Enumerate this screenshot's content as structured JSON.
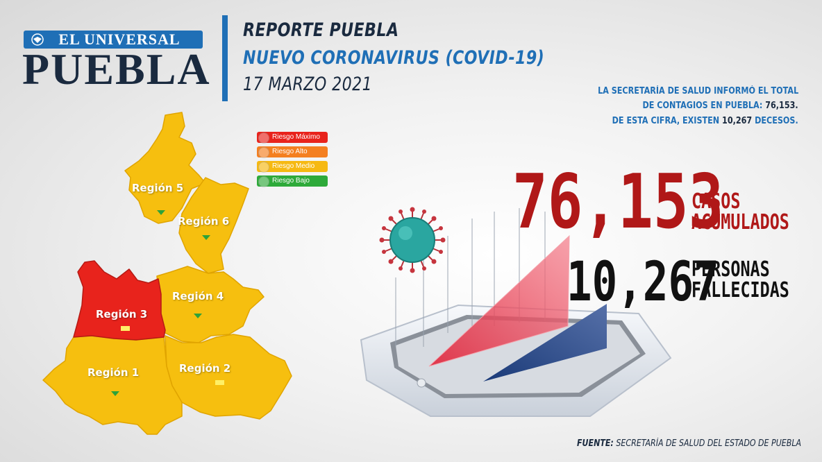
{
  "logo": {
    "top": "EL UNIVERSAL",
    "bottom": "PUEBLA"
  },
  "header": {
    "line1": "REPORTE PUEBLA",
    "line2": "NUEVO CORONAVIRUS (COVID-19)",
    "line3": "17 MARZO 2021"
  },
  "summary": {
    "line1": "LA SECRETARÍA DE SALUD  INFORMÓ EL TOTAL",
    "line2_prefix": "DE CONTAGIOS EN PUEBLA: ",
    "line2_value": "76,153.",
    "line3_prefix": "DE ESTA CIFRA, EXISTEN ",
    "line3_value": "10,267",
    "line3_suffix": " DECESOS."
  },
  "legend": [
    {
      "label": "Riesgo Máximo",
      "color": "#e8231c"
    },
    {
      "label": "Riesgo Alto",
      "color": "#f47f20"
    },
    {
      "label": "Riesgo Medio",
      "color": "#f6b912"
    },
    {
      "label": "Riesgo Bajo",
      "color": "#2eaa3a"
    }
  ],
  "map": {
    "colors": {
      "medio": "#f6bf0f",
      "maximo": "#e8231c",
      "marker_green": "#2ea23a",
      "marker_yellow": "#fff066"
    },
    "regions": [
      {
        "label": "Región 5",
        "risk": "Riesgo Medio"
      },
      {
        "label": "Región 6",
        "risk": "Riesgo Medio"
      },
      {
        "label": "Región 4",
        "risk": "Riesgo Medio"
      },
      {
        "label": "Región 3",
        "risk": "Riesgo Máximo"
      },
      {
        "label": "Región 1",
        "risk": "Riesgo Medio"
      },
      {
        "label": "Región 2",
        "risk": "Riesgo Medio"
      }
    ]
  },
  "stats": {
    "cases_value": "76,153",
    "cases_label_1": "CASOS",
    "cases_label_2": "ACUMULADOS",
    "deaths_value": "10,267",
    "deaths_label_1": "PERSONAS",
    "deaths_label_2": "FALLECIDAS"
  },
  "source": {
    "prefix": "FUENTE:",
    "text": " SECRETARÍA DE SALUD DEL ESTADO DE PUEBLA"
  }
}
